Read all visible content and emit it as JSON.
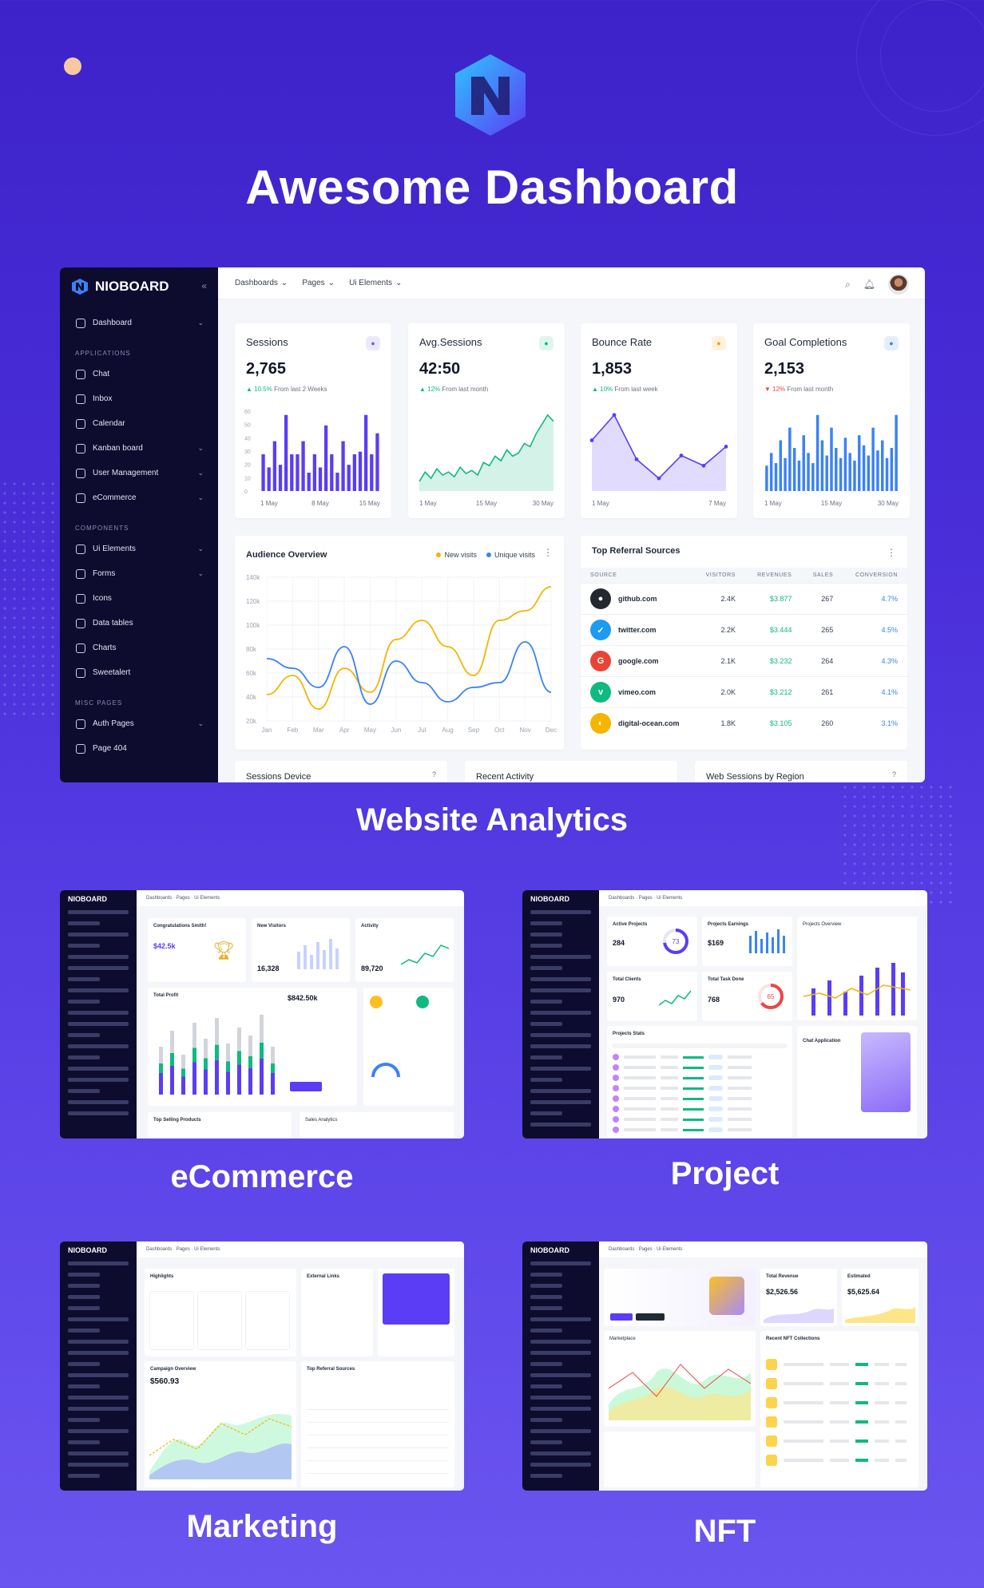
{
  "hero": {
    "title": "Awesome Dashboard"
  },
  "sections": {
    "analytics": "Website Analytics",
    "ecommerce": "eCommerce",
    "project": "Project",
    "marketing": "Marketing",
    "nft": "NFT"
  },
  "brand": {
    "name": "NIOBOARD"
  },
  "sidebar": {
    "dashboard": "Dashboard",
    "applications_head": "APPLICATIONS",
    "applications": [
      "Chat",
      "Inbox",
      "Calendar",
      "Kanban board",
      "User Management",
      "eCommerce"
    ],
    "components_head": "COMPONENTS",
    "components": [
      "Ui Elements",
      "Forms",
      "Icons",
      "Data tables",
      "Charts",
      "Sweetalert"
    ],
    "misc_head": "MISC PAGES",
    "misc": [
      "Auth Pages",
      "Page 404"
    ]
  },
  "topbar": {
    "menus": [
      "Dashboards",
      "Pages",
      "Ui Elements"
    ]
  },
  "kpis": [
    {
      "title": "Sessions",
      "value": "2,765",
      "delta": "10.5%",
      "delta_text": "From last 2 Weeks",
      "dir": "up",
      "badge_color": "#6d5dfc",
      "x_labels": [
        "1 May",
        "8 May",
        "15 May"
      ],
      "y_ticks": [
        "60",
        "50",
        "40",
        "30",
        "20",
        "10",
        "0"
      ],
      "values": [
        28,
        18,
        38,
        20,
        58,
        28,
        28,
        38,
        14,
        28,
        18,
        50,
        28,
        14,
        38,
        20,
        28,
        30,
        58,
        28,
        44
      ]
    },
    {
      "title": "Avg.Sessions",
      "value": "42:50",
      "delta": "12%",
      "delta_text": "From last month",
      "dir": "up",
      "badge_color": "#10b981",
      "x_labels": [
        "1 May",
        "15 May",
        "30 May"
      ],
      "values": [
        6,
        12,
        8,
        14,
        10,
        12,
        9,
        15,
        11,
        13,
        10,
        18,
        16,
        22,
        19,
        26,
        22,
        24,
        30,
        28,
        36,
        42,
        48,
        44
      ]
    },
    {
      "title": "Bounce Rate",
      "value": "1,853",
      "delta": "10%",
      "delta_text": "From last week",
      "dir": "up",
      "badge_color": "#f59e0b",
      "x_labels": [
        "1 May",
        "7 May"
      ],
      "values": [
        40,
        60,
        25,
        10,
        28,
        20,
        35
      ]
    },
    {
      "title": "Goal Completions",
      "value": "2,153",
      "delta": "12%",
      "delta_text": "From last month",
      "dir": "down",
      "badge_color": "#3b82f6",
      "x_labels": [
        "1 May",
        "15 May",
        "30 May"
      ],
      "values": [
        20,
        30,
        22,
        40,
        26,
        50,
        34,
        24,
        44,
        30,
        22,
        60,
        40,
        28,
        50,
        34,
        26,
        42,
        30,
        24,
        44,
        36,
        28,
        50,
        32,
        40,
        26,
        34,
        60
      ]
    }
  ],
  "audience": {
    "title": "Audience Overview",
    "legend": [
      "New visits",
      "Unique visits"
    ],
    "colors": {
      "new": "#f5b400",
      "unique": "#3b82f6"
    },
    "chart_data": {
      "type": "line",
      "categories": [
        "Jan",
        "Feb",
        "Mar",
        "Apr",
        "May",
        "Jun",
        "Jul",
        "Aug",
        "Sep",
        "Oct",
        "Nov",
        "Dec"
      ],
      "y_ticks": [
        "140k",
        "120k",
        "100k",
        "80k",
        "60k",
        "40k",
        "20k"
      ],
      "ylim": [
        20000,
        140000
      ],
      "series": [
        {
          "name": "New visits",
          "values": [
            42000,
            58000,
            30000,
            64000,
            44000,
            88000,
            104000,
            82000,
            58000,
            104000,
            112000,
            132000
          ]
        },
        {
          "name": "Unique visits",
          "values": [
            72000,
            64000,
            48000,
            82000,
            34000,
            70000,
            52000,
            36000,
            48000,
            52000,
            86000,
            44000
          ]
        }
      ]
    }
  },
  "referral": {
    "title": "Top Referral Sources",
    "columns": [
      "SOURCE",
      "VISITORS",
      "REVENUES",
      "SALES",
      "CONVERSION"
    ],
    "rows": [
      {
        "site": "github.com",
        "visitors": "2.4K",
        "revenue": "$3.877",
        "sales": "267",
        "conversion": "4.7%",
        "color": "#24292f",
        "glyph": "●"
      },
      {
        "site": "twitter.com",
        "visitors": "2.2K",
        "revenue": "$3.444",
        "sales": "265",
        "conversion": "4.5%",
        "color": "#1d9bf0",
        "glyph": "✓"
      },
      {
        "site": "google.com",
        "visitors": "2.1K",
        "revenue": "$3.232",
        "sales": "264",
        "conversion": "4.3%",
        "color": "#ea4335",
        "glyph": "G"
      },
      {
        "site": "vimeo.com",
        "visitors": "2.0K",
        "revenue": "$3.212",
        "sales": "261",
        "conversion": "4.1%",
        "color": "#10b981",
        "glyph": "v"
      },
      {
        "site": "digital-ocean.com",
        "visitors": "1.8K",
        "revenue": "$3.105",
        "sales": "260",
        "conversion": "3.1%",
        "color": "#f5b400",
        "glyph": "◐"
      }
    ]
  },
  "bottom_cards": [
    "Sessions Device",
    "Recent Activity",
    "Web Sessions by Region"
  ],
  "thumbs": {
    "ecommerce": {
      "cards": [
        "Congratulations Smith!",
        "New Visitors",
        "Activity",
        "Total Profit",
        "Top Selling Products",
        "Sales Analytics"
      ],
      "values": [
        "$42.5k",
        "16,328",
        "89,720",
        "$842.50k"
      ]
    },
    "project": {
      "cards": [
        "Active Projects",
        "Projects Earnings",
        "Projects Overview",
        "Total Clients",
        "Total Task Done",
        "Projects Stats",
        "Chat Application"
      ],
      "values": [
        "284",
        "$169",
        "970",
        "768",
        "73",
        "65"
      ]
    },
    "marketing": {
      "cards": [
        "Highlights",
        "External Links",
        "Campaign Overview",
        "Top Referral Sources"
      ],
      "values": [
        "$560.93"
      ]
    },
    "nft": {
      "cards": [
        "Total Revenue",
        "Estimated",
        "Marketplace",
        "Recent NFT Collections"
      ],
      "values": [
        "$2,526.56",
        "$5,625.64"
      ]
    }
  }
}
